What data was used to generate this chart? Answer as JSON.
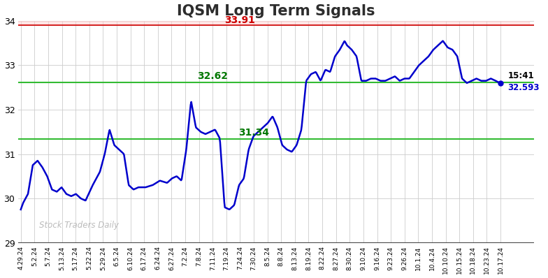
{
  "title": "IQSM Long Term Signals",
  "title_fontsize": 15,
  "title_fontweight": "bold",
  "title_color": "#2d2d2d",
  "background_color": "#ffffff",
  "line_color": "#0000cc",
  "line_width": 1.8,
  "ylim": [
    29,
    34
  ],
  "yticks": [
    29,
    30,
    31,
    32,
    33,
    34
  ],
  "red_hline": 33.91,
  "red_hline_color": "#cc0000",
  "red_fill_color": "#ffcccc",
  "red_label_color": "#cc0000",
  "green_hline1": 32.62,
  "green_hline2": 31.34,
  "green_hline_color": "#33bb33",
  "green_label_color": "#007700",
  "watermark": "Stock Traders Daily",
  "watermark_color": "#bbbbbb",
  "end_label_time": "15:41",
  "end_label_price": "32.593",
  "end_dot_color": "#0000cc",
  "grid_color": "#cccccc",
  "x_labels": [
    "4.29.24",
    "5.2.24",
    "5.7.24",
    "5.13.24",
    "5.17.24",
    "5.22.24",
    "5.29.24",
    "6.5.24",
    "6.10.24",
    "6.17.24",
    "6.24.24",
    "6.27.24",
    "7.2.24",
    "7.8.24",
    "7.11.24",
    "7.19.24",
    "7.24.24",
    "7.30.24",
    "8.5.24",
    "8.8.24",
    "8.13.24",
    "8.19.24",
    "8.22.24",
    "8.27.24",
    "8.30.24",
    "9.10.24",
    "9.16.24",
    "9.23.24",
    "9.26.24",
    "10.1.24",
    "10.4.24",
    "10.10.24",
    "10.15.24",
    "10.18.24",
    "10.23.24",
    "10.17.24"
  ],
  "key_x": [
    0,
    1,
    3,
    5,
    7,
    9,
    11,
    13,
    15,
    17,
    19,
    21,
    23,
    25,
    27,
    30,
    33,
    35,
    37,
    39,
    41,
    43,
    45,
    47,
    49,
    52,
    55,
    58,
    61,
    63,
    65,
    67,
    69,
    71,
    73,
    75,
    77,
    79,
    81,
    83,
    85,
    87,
    89,
    91,
    93,
    95,
    97,
    99,
    101,
    103,
    105,
    107,
    109,
    111,
    113,
    115,
    117,
    119,
    121,
    123,
    125,
    127,
    129,
    131,
    133,
    135
  ],
  "key_y": [
    29.75,
    29.9,
    30.1,
    30.75,
    30.85,
    30.7,
    30.5,
    30.2,
    30.15,
    30.25,
    30.1,
    30.05,
    30.1,
    30.0,
    29.95,
    30.3,
    30.6,
    31.0,
    31.55,
    31.2,
    31.1,
    31.0,
    30.3,
    30.2,
    30.25,
    30.25,
    30.3,
    30.4,
    30.35,
    30.45,
    30.5,
    30.4,
    31.1,
    32.2,
    31.6,
    31.5,
    31.45,
    31.5,
    31.55,
    31.35,
    29.8,
    29.75,
    29.85,
    30.3,
    30.45,
    31.1,
    31.4,
    31.5,
    31.6,
    31.7,
    31.85,
    31.6,
    31.2,
    31.1,
    31.05,
    31.2,
    31.55,
    32.65,
    32.8,
    32.85,
    32.65,
    32.9,
    32.85,
    33.2,
    33.35,
    33.55
  ],
  "extra_x": [
    136,
    138,
    140,
    142,
    144,
    146,
    148,
    150,
    152,
    154,
    156,
    158,
    160,
    162,
    164,
    166,
    168,
    170,
    172,
    174,
    176,
    178,
    180,
    182,
    184,
    186,
    188,
    190,
    192,
    194,
    196,
    198,
    200
  ],
  "extra_y": [
    33.45,
    33.35,
    33.2,
    32.65,
    32.65,
    32.7,
    32.7,
    32.65,
    32.65,
    32.7,
    32.75,
    32.65,
    32.7,
    32.7,
    32.85,
    33.0,
    33.1,
    33.2,
    33.35,
    33.45,
    33.55,
    33.4,
    33.35,
    33.2,
    32.7,
    32.6,
    32.65,
    32.7,
    32.65,
    32.65,
    32.7,
    32.65,
    32.593
  ]
}
